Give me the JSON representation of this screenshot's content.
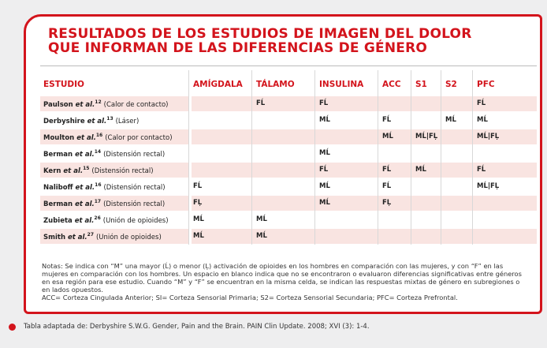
{
  "header": {
    "title": [
      "RESULTADOS DE LOS ESTUDIOS DE IMAGEN DEL DOLOR",
      "QUE INFORMAN DE LAS DIFERENCIAS DE GÉNERO"
    ]
  },
  "table": {
    "columns": [
      "ESTUDIO",
      "AMÍGDALA",
      "TÁLAMO",
      "INSULINA",
      "ACC",
      "S1",
      "S2",
      "PFC"
    ],
    "rows": [
      {
        "name": "Paulson",
        "etal": "et al.",
        "ref": "12",
        "desc": "(Calor de contacto)",
        "cells": [
          null,
          "FĹ",
          "FĹ",
          null,
          null,
          null,
          "FĹ"
        ]
      },
      {
        "name": "Derbyshire",
        "etal": "et al.",
        "ref": "13",
        "desc": "(Láser)",
        "cells": [
          null,
          null,
          "MĹ",
          "FĹ",
          null,
          "MĹ",
          "MĹ"
        ]
      },
      {
        "name": "Moulton",
        "etal": "et al.",
        "ref": "16",
        "desc": "(Calor por contacto)",
        "cells": [
          null,
          null,
          null,
          "MĹ",
          "MĹ|FĻ",
          null,
          "MĹ|FĻ"
        ]
      },
      {
        "name": "Berman",
        "etal": "et al.",
        "ref": "14",
        "desc": "(Distensión rectal)",
        "cells": [
          null,
          null,
          "MĹ",
          null,
          null,
          null,
          null
        ]
      },
      {
        "name": "Kern",
        "etal": "et al.",
        "ref": "15",
        "desc": "(Distensión rectal)",
        "cells": [
          null,
          null,
          "FĹ",
          "FĹ",
          "MĹ",
          null,
          "FĹ"
        ]
      },
      {
        "name": "Naliboff",
        "etal": "et al.",
        "ref": "16",
        "desc": "(Distensión rectal)",
        "cells": [
          "FĹ",
          null,
          "MĹ",
          "FĹ",
          null,
          null,
          "MĹ|FĻ"
        ]
      },
      {
        "name": "Berman",
        "etal": "et al.",
        "ref": "17",
        "desc": "(Distensión rectal)",
        "cells": [
          "FĻ",
          null,
          "MĹ",
          "FĻ",
          null,
          null,
          null
        ]
      },
      {
        "name": "Zubieta",
        "etal": "et al.",
        "ref": "26",
        "desc": "(Unión de opioides)",
        "cells": [
          "MĹ",
          "MĹ",
          null,
          null,
          null,
          null,
          null
        ]
      },
      {
        "name": "Smith",
        "etal": "et al.",
        "ref": "27",
        "desc": "(Unión de opioides)",
        "cells": [
          "MĹ",
          "MĹ",
          null,
          null,
          null,
          null,
          null
        ]
      }
    ]
  },
  "notes": [
    "Notas: Se indica con “M” una mayor (Ĺ) o menor (Ļ) activación de opioides en los hombres en comparación con las mujeres, y con “F” en las mujeres en comparación con los hombres. Un espacio en blanco indica que no se encontraron o evaluaron diferencias significativas entre géneros en esa región para ese estudio. Cuando “M” y “F” se encuentran en la misma celda, se indican las respuestas mixtas de género en subregiones o en lados opuestos.",
    "ACC= Corteza Cingulada Anterior; SI= Corteza Sensorial Primaria; S2= Corteza Sensorial Secundaria; PFC= Corteza Prefrontal."
  ],
  "source": "Tabla adaptada de: Derbyshire S.W.G. Gender, Pain and the Brain. PAIN Clin Update. 2008; XVI (3): 1-4."
}
